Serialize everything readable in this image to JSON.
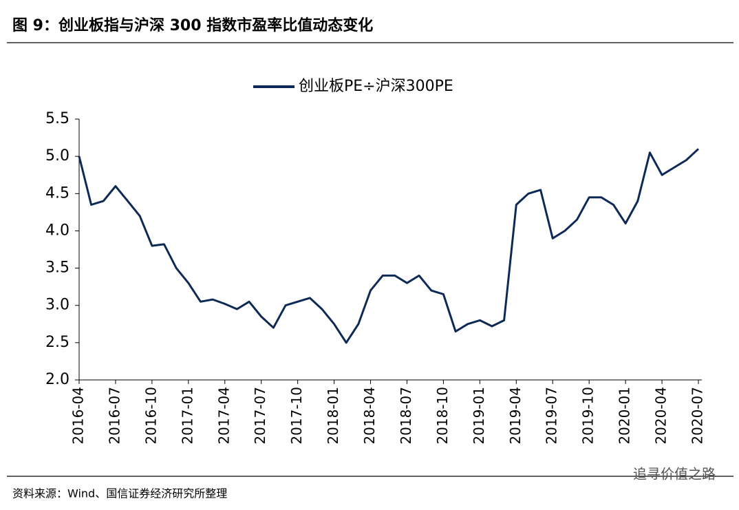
{
  "header": {
    "title": "图 9：创业板指与沪深 300 指数市盈率比值动态变化"
  },
  "chart_data": {
    "type": "line",
    "x": [
      "2016-04",
      "2016-05",
      "2016-06",
      "2016-07",
      "2016-08",
      "2016-09",
      "2016-10",
      "2016-11",
      "2016-12",
      "2017-01",
      "2017-02",
      "2017-03",
      "2017-04",
      "2017-05",
      "2017-06",
      "2017-07",
      "2017-08",
      "2017-09",
      "2017-10",
      "2017-11",
      "2017-12",
      "2018-01",
      "2018-02",
      "2018-03",
      "2018-04",
      "2018-05",
      "2018-06",
      "2018-07",
      "2018-08",
      "2018-09",
      "2018-10",
      "2018-11",
      "2018-12",
      "2019-01",
      "2019-02",
      "2019-03",
      "2019-04",
      "2019-05",
      "2019-06",
      "2019-07",
      "2019-08",
      "2019-09",
      "2019-10",
      "2019-11",
      "2019-12",
      "2020-01",
      "2020-02",
      "2020-03",
      "2020-04",
      "2020-05",
      "2020-06",
      "2020-07"
    ],
    "series": [
      {
        "name": "创业板PE÷沪深300PE",
        "color": "#0d2a56",
        "values": [
          5.0,
          4.35,
          4.4,
          4.6,
          4.4,
          4.2,
          3.8,
          3.82,
          3.5,
          3.3,
          3.05,
          3.08,
          3.02,
          2.95,
          3.05,
          2.85,
          2.7,
          3.0,
          3.05,
          3.1,
          2.95,
          2.75,
          2.5,
          2.75,
          3.2,
          3.4,
          3.4,
          3.3,
          3.4,
          3.2,
          3.15,
          2.65,
          2.75,
          2.8,
          2.72,
          2.8,
          4.35,
          4.5,
          4.55,
          3.9,
          4.0,
          4.15,
          4.45,
          4.45,
          4.35,
          4.1,
          4.4,
          5.05,
          4.75,
          4.85,
          4.95,
          5.1
        ]
      }
    ],
    "xticks": [
      "2016-04",
      "2016-07",
      "2016-10",
      "2017-01",
      "2017-04",
      "2017-07",
      "2017-10",
      "2018-01",
      "2018-04",
      "2018-07",
      "2018-10",
      "2019-01",
      "2019-04",
      "2019-07",
      "2019-10",
      "2020-01",
      "2020-04",
      "2020-07"
    ],
    "ylim": [
      2,
      5.5
    ],
    "yticks": [
      {
        "value": 2,
        "label": "2.0"
      },
      2.5,
      {
        "value": 3,
        "label": "3.0"
      },
      3.5,
      {
        "value": 4,
        "label": "4.0"
      },
      4.5,
      {
        "value": 5,
        "label": "5.0"
      },
      5.5
    ],
    "legend": "top"
  },
  "footer": {
    "source": "资料来源：Wind、国信证券经济研究所整理",
    "watermark": "追寻价值之路"
  }
}
